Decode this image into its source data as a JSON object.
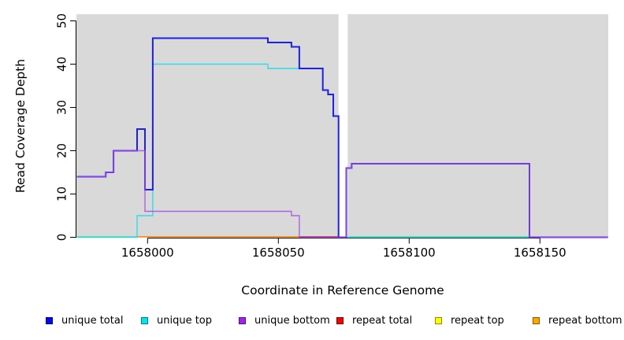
{
  "chart_data": {
    "type": "line",
    "subtype": "step",
    "title": "",
    "xlabel": "Coordinate in Reference Genome",
    "ylabel": "Read Coverage Depth",
    "xlim": [
      1657973,
      1658176
    ],
    "ylim": [
      0,
      50
    ],
    "xticks": [
      1658000,
      1658050,
      1658100,
      1658150
    ],
    "yticks": [
      0,
      10,
      20,
      30,
      40,
      50
    ],
    "grid": false,
    "plot_bg": "#d9d9d9",
    "gap_band": {
      "from": 1658073,
      "to": 1658076.5,
      "color": "#ffffff"
    },
    "series": [
      {
        "name": "unique top",
        "color": "#30dce8",
        "width": 1.4,
        "opacity": 1,
        "xend": 1658176,
        "steps": [
          [
            1657973,
            0
          ],
          [
            1657996,
            5
          ],
          [
            1658002,
            40
          ],
          [
            1658046,
            39
          ],
          [
            1658067,
            34
          ],
          [
            1658069,
            33
          ],
          [
            1658071,
            28
          ],
          [
            1658073,
            0
          ]
        ]
      },
      {
        "name": "unique total",
        "color": "#1f1fe8",
        "width": 2,
        "opacity": 1,
        "xend": 1658176,
        "steps": [
          [
            1657973,
            14
          ],
          [
            1657984,
            15
          ],
          [
            1657987,
            20
          ],
          [
            1657996,
            25
          ],
          [
            1657999,
            11
          ],
          [
            1658002,
            46
          ],
          [
            1658046,
            45
          ],
          [
            1658055,
            44
          ],
          [
            1658058,
            39
          ],
          [
            1658067,
            34
          ],
          [
            1658069,
            33
          ],
          [
            1658071,
            28
          ],
          [
            1658073,
            0
          ],
          [
            1658076,
            16
          ],
          [
            1658078,
            17
          ],
          [
            1658146,
            0
          ]
        ]
      },
      {
        "name": "unique bottom",
        "color": "#a84ae8",
        "width": 1.4,
        "opacity": 0.85,
        "xend": 1658176,
        "steps": [
          [
            1657973,
            14
          ],
          [
            1657984,
            15
          ],
          [
            1657987,
            20
          ],
          [
            1657999,
            6
          ],
          [
            1658055,
            5
          ],
          [
            1658058,
            0
          ],
          [
            1658076,
            16
          ],
          [
            1658078,
            17
          ],
          [
            1658146,
            0
          ]
        ]
      }
    ],
    "zero_level_segments": [
      {
        "color": "#7cd492",
        "from": 1657973,
        "to": 1657996
      },
      {
        "color": "#ff8c00",
        "from": 1657996,
        "to": 1658058
      },
      {
        "color": "#cf3f63",
        "from": 1658058,
        "to": 1658073
      },
      {
        "color": "#7cd492",
        "from": 1658077,
        "to": 1658146
      }
    ]
  },
  "legend": {
    "items": [
      {
        "label": "unique total",
        "color": "#0505f0"
      },
      {
        "label": "unique top",
        "color": "#00e5ee"
      },
      {
        "label": "unique bottom",
        "color": "#a020f0"
      },
      {
        "label": "repeat total",
        "color": "#f00505"
      },
      {
        "label": "repeat top",
        "color": "#ffff00"
      },
      {
        "label": "repeat bottom",
        "color": "#ffa500"
      }
    ]
  },
  "colors": {
    "page_bg": "#ffffff",
    "axis": "#000000",
    "text": "#000000"
  }
}
